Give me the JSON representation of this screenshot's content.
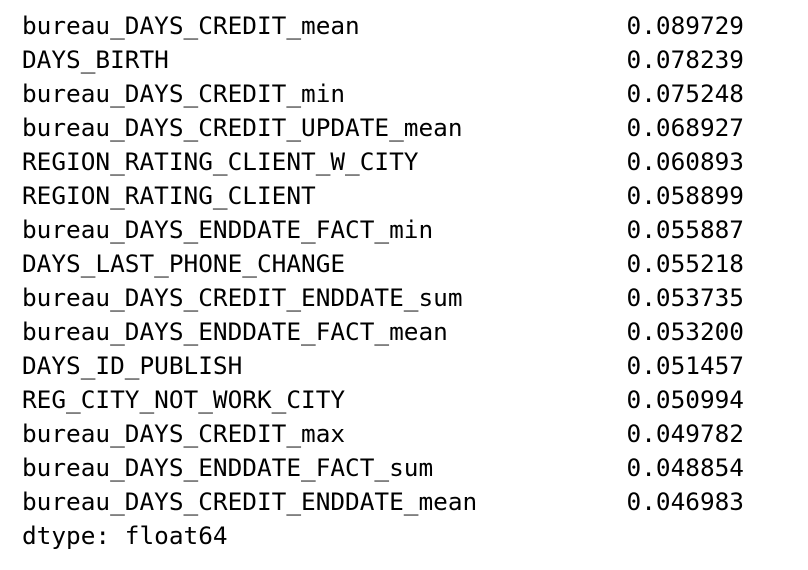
{
  "series": {
    "rows": [
      {
        "name": "bureau_DAYS_CREDIT_mean",
        "value": "0.089729"
      },
      {
        "name": "DAYS_BIRTH",
        "value": "0.078239"
      },
      {
        "name": "bureau_DAYS_CREDIT_min",
        "value": "0.075248"
      },
      {
        "name": "bureau_DAYS_CREDIT_UPDATE_mean",
        "value": "0.068927"
      },
      {
        "name": "REGION_RATING_CLIENT_W_CITY",
        "value": "0.060893"
      },
      {
        "name": "REGION_RATING_CLIENT",
        "value": "0.058899"
      },
      {
        "name": "bureau_DAYS_ENDDATE_FACT_min",
        "value": "0.055887"
      },
      {
        "name": "DAYS_LAST_PHONE_CHANGE",
        "value": "0.055218"
      },
      {
        "name": "bureau_DAYS_CREDIT_ENDDATE_sum",
        "value": "0.053735"
      },
      {
        "name": "bureau_DAYS_ENDDATE_FACT_mean",
        "value": "0.053200"
      },
      {
        "name": "DAYS_ID_PUBLISH",
        "value": "0.051457"
      },
      {
        "name": "REG_CITY_NOT_WORK_CITY",
        "value": "0.050994"
      },
      {
        "name": "bureau_DAYS_CREDIT_max",
        "value": "0.049782"
      },
      {
        "name": "bureau_DAYS_ENDDATE_FACT_sum",
        "value": "0.048854"
      },
      {
        "name": "bureau_DAYS_CREDIT_ENDDATE_mean",
        "value": "0.046983"
      }
    ],
    "dtype_line": "dtype: float64"
  }
}
